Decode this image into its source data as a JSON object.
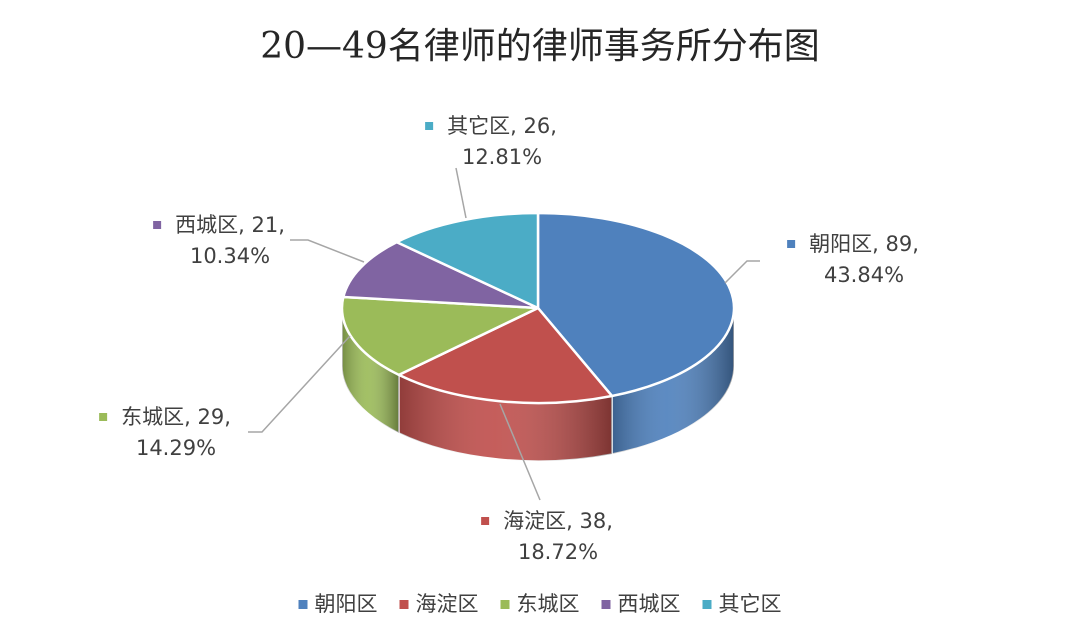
{
  "chart_data": {
    "type": "pie",
    "title": "20—49名律师的律师事务所分布图",
    "legend_position": "bottom",
    "slices": [
      {
        "label": "朝阳区",
        "value": 89,
        "percent": "43.84%",
        "color": "#4F81BD",
        "side_color": "#2E4F75"
      },
      {
        "label": "海淀区",
        "value": 38,
        "percent": "18.72%",
        "color": "#C0504D",
        "side_color": "#8E3330"
      },
      {
        "label": "东城区",
        "value": 29,
        "percent": "14.29%",
        "color": "#9BBB59",
        "side_color": "#6E8A3A"
      },
      {
        "label": "西城区",
        "value": 21,
        "percent": "10.34%",
        "color": "#8064A2",
        "side_color": "#5A4577"
      },
      {
        "label": "其它区",
        "value": 26,
        "percent": "12.81%",
        "color": "#4BACC6",
        "side_color": "#2E7D93"
      }
    ]
  }
}
